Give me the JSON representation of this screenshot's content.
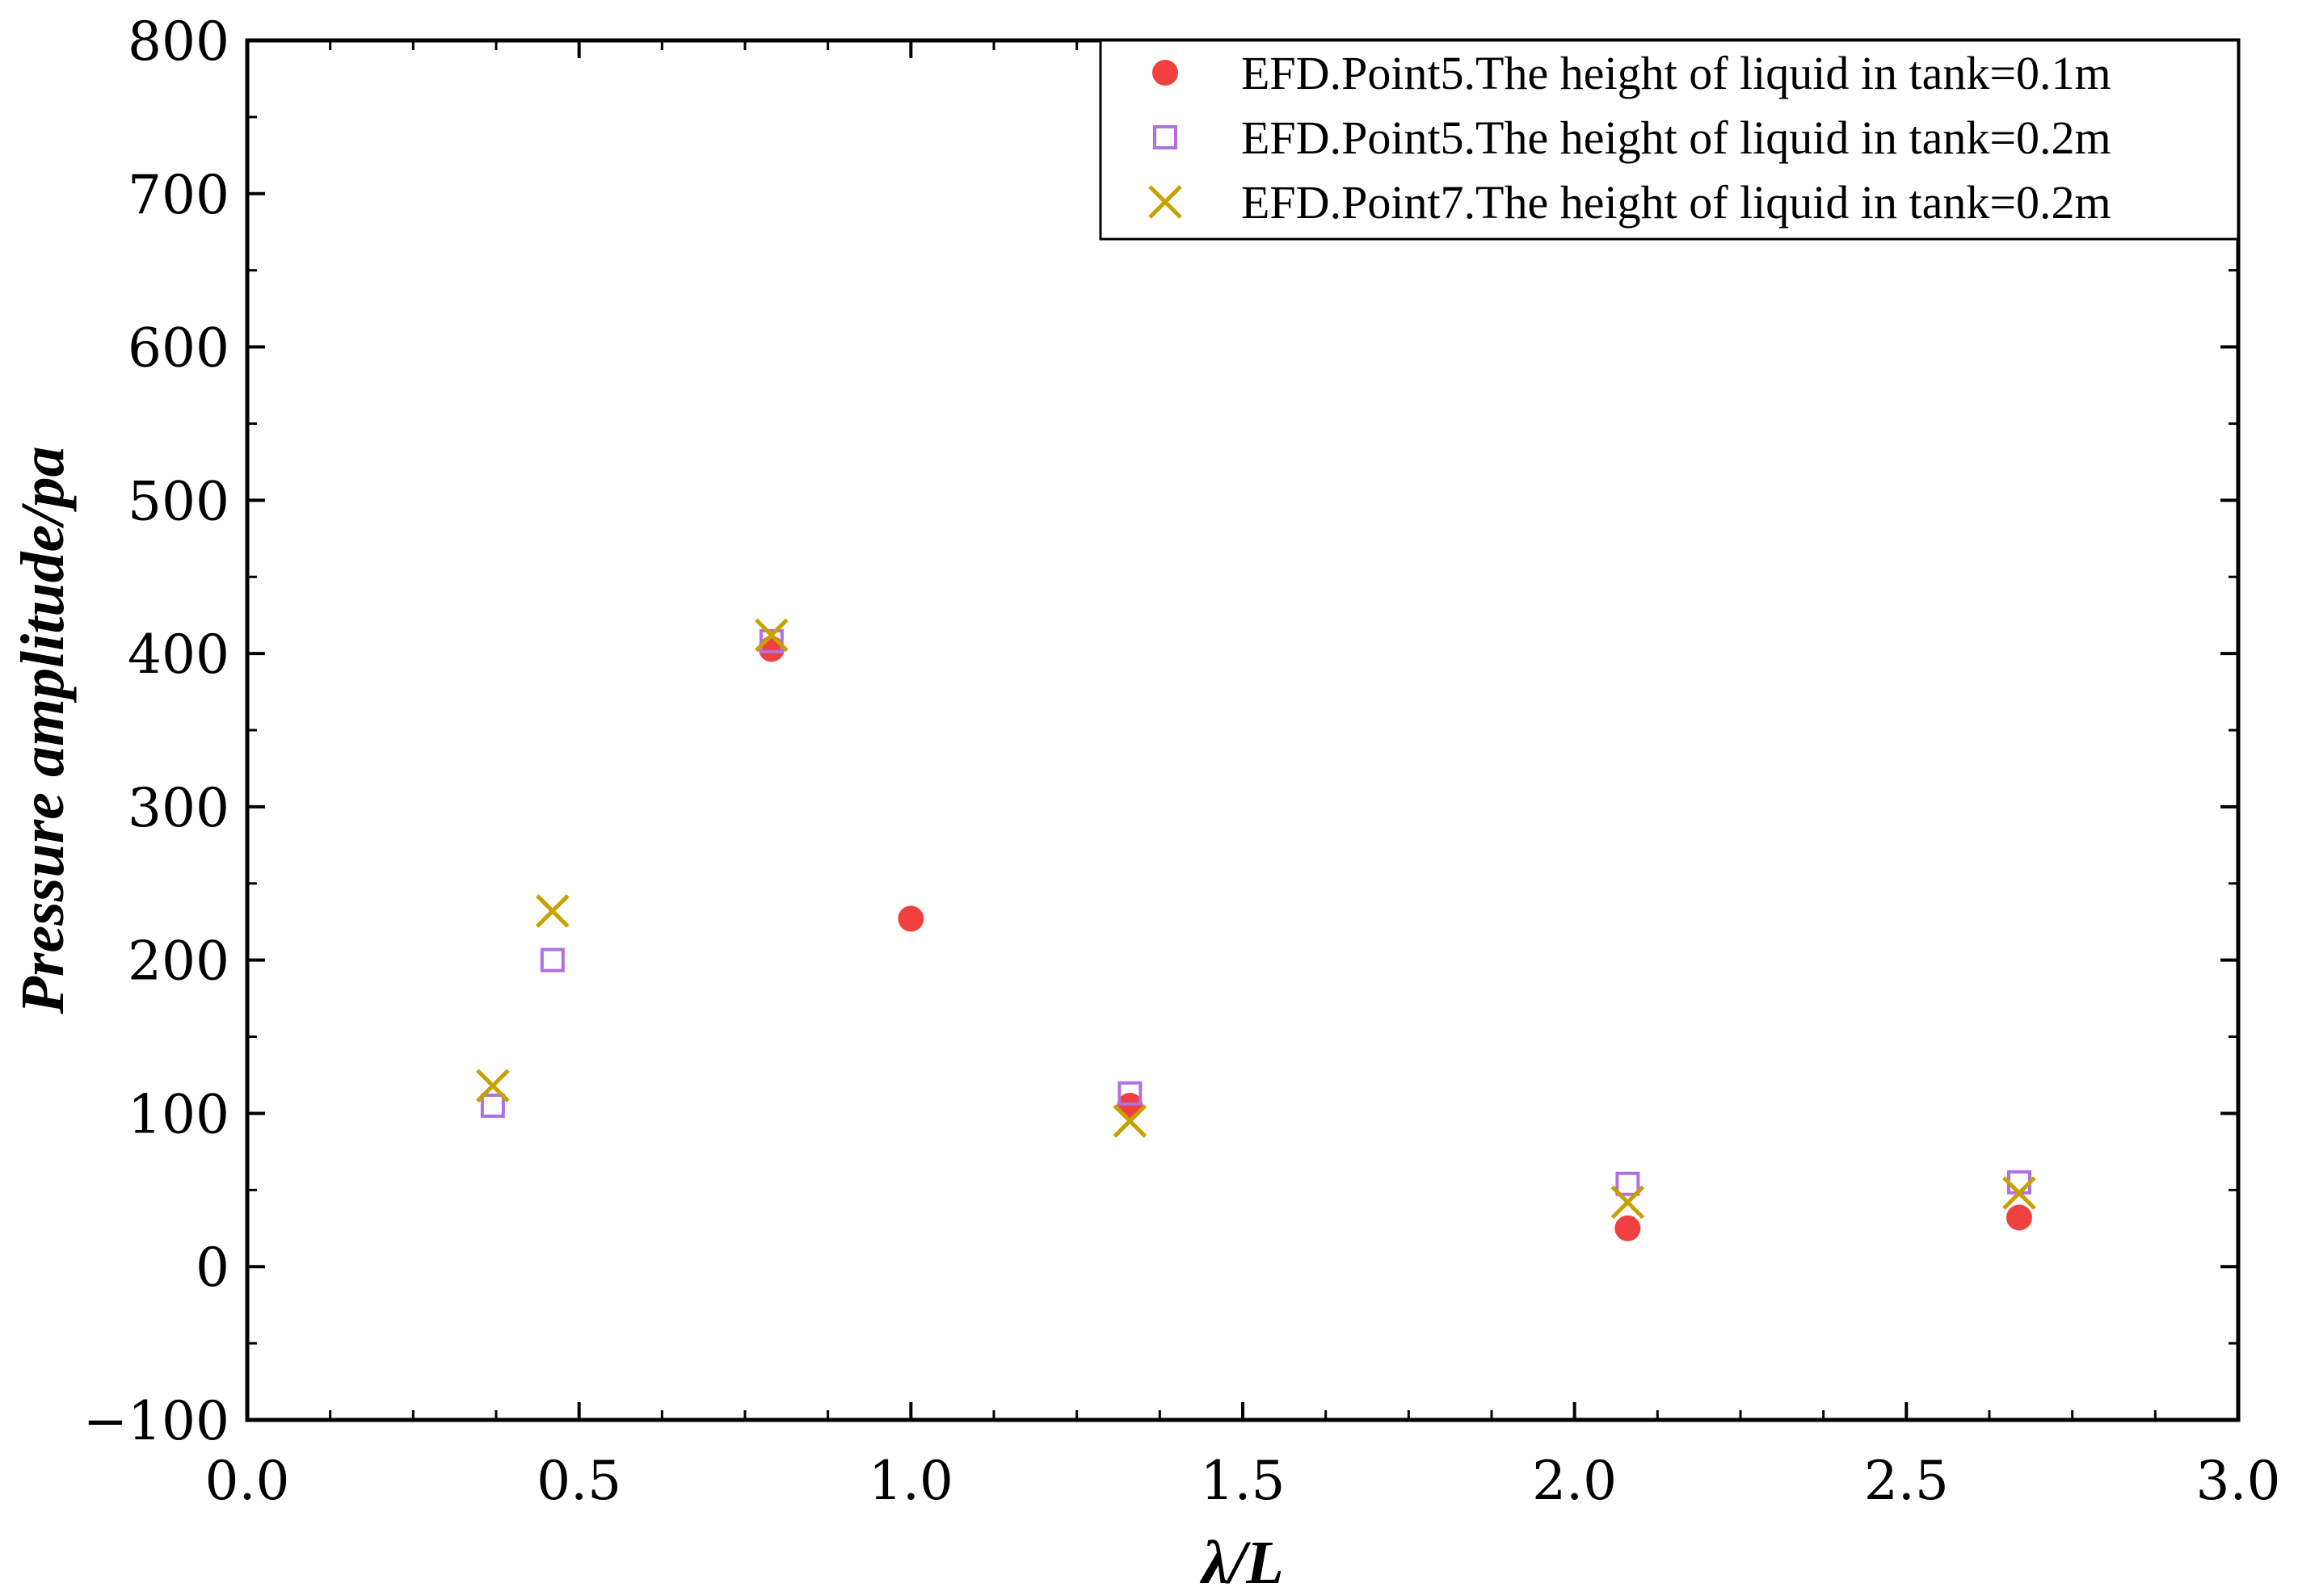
{
  "chart_data": {
    "type": "scatter",
    "title": "",
    "xlabel": "λ/L",
    "ylabel": "Pressure amplitude/pa",
    "xlim": [
      0.0,
      3.0
    ],
    "ylim": [
      -100,
      800
    ],
    "xticks": [
      0.0,
      0.5,
      1.0,
      1.5,
      2.0,
      2.5,
      3.0
    ],
    "xtick_labels": [
      "0.0",
      "0.5",
      "1.0",
      "1.5",
      "2.0",
      "2.5",
      "3.0"
    ],
    "yticks": [
      -100,
      0,
      100,
      200,
      300,
      400,
      500,
      600,
      700,
      800
    ],
    "ytick_labels": [
      "−100",
      "0",
      "100",
      "200",
      "300",
      "400",
      "500",
      "600",
      "700",
      "800"
    ],
    "grid": false,
    "legend_position": "top-right",
    "series": [
      {
        "name": "EFD.Point5.The height of liquid in tank=0.1m",
        "marker": "filled-circle",
        "color": "#f04040",
        "x": [
          0.79,
          1.0,
          1.33,
          2.08,
          2.67
        ],
        "y": [
          403,
          227,
          105,
          25,
          32
        ]
      },
      {
        "name": "EFD.Point5.The height of liquid in tank=0.2m",
        "marker": "open-square",
        "color": "#b070e0",
        "x": [
          0.37,
          0.46,
          0.79,
          1.33,
          2.08,
          2.67
        ],
        "y": [
          105,
          200,
          408,
          113,
          54,
          55
        ]
      },
      {
        "name": "EFD.Point7.The height of liquid in tank=0.2m",
        "marker": "x-cross",
        "color": "#c8a000",
        "x": [
          0.37,
          0.46,
          0.79,
          1.33,
          2.08,
          2.67
        ],
        "y": [
          118,
          232,
          412,
          95,
          42,
          48
        ]
      }
    ]
  }
}
